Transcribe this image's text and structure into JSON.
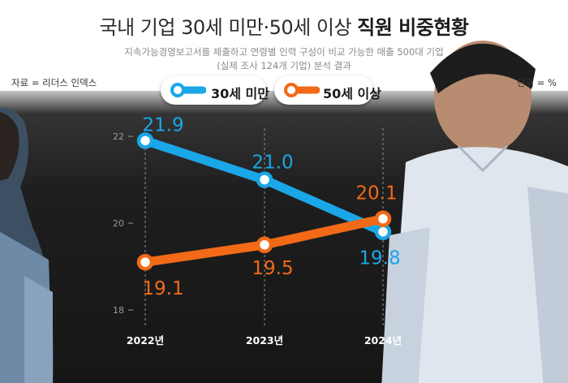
{
  "title": {
    "main": "국내 기업 30세 미만·50세 이상 ",
    "emphasis": "직원 비중현황"
  },
  "subtitle": {
    "line1": "지속가능경영보고서를 제출하고 연령별 인력 구성이 비교 가능한 매출 500대 기업",
    "line2": "(실제 조사 124개 기업) 분석 결과"
  },
  "source": "자료 = 리더스 인덱스",
  "unit": "단위 = %",
  "colors": {
    "series_under30": "#1aa7e8",
    "series_over50": "#f26a17"
  },
  "chart_data": {
    "type": "line",
    "categories": [
      "2022년",
      "2023년",
      "2024년"
    ],
    "ylim": [
      18,
      22
    ],
    "yticks": [
      18,
      20,
      22
    ],
    "grid": false,
    "legend": "top",
    "series": [
      {
        "name": "30세 미만",
        "values": [
          21.9,
          21.0,
          19.8
        ],
        "labels": [
          "21.9",
          "21.0",
          "19.8"
        ]
      },
      {
        "name": "50세 이상",
        "values": [
          19.1,
          19.5,
          20.1
        ],
        "labels": [
          "19.1",
          "19.5",
          "20.1"
        ]
      }
    ]
  }
}
